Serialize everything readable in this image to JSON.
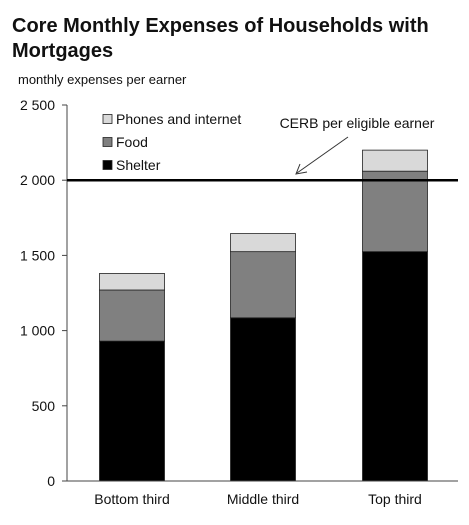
{
  "chart_data": {
    "type": "bar",
    "stacked": true,
    "title": "Core Monthly Expenses of Households with Mortgages",
    "ylabel": "monthly expenses per earner",
    "xlabel": "",
    "categories": [
      "Bottom third",
      "Middle third",
      "Top third"
    ],
    "series": [
      {
        "name": "Shelter",
        "color": "#000000",
        "values": [
          930,
          1085,
          1525
        ]
      },
      {
        "name": "Food",
        "color": "#808080",
        "values": [
          340,
          440,
          535
        ]
      },
      {
        "name": "Phones and internet",
        "color": "#d9d9d9",
        "values": [
          110,
          120,
          140
        ]
      }
    ],
    "ylim": [
      0,
      2500
    ],
    "yticks": [
      0,
      500,
      1000,
      1500,
      2000,
      2500
    ],
    "ytick_labels": [
      "0",
      "500",
      "1 000",
      "1 500",
      "2 000",
      "2 500"
    ],
    "legend_position": "top-left",
    "grid": false,
    "reference_line": {
      "value": 2000,
      "label": "CERB per eligible earner"
    }
  }
}
